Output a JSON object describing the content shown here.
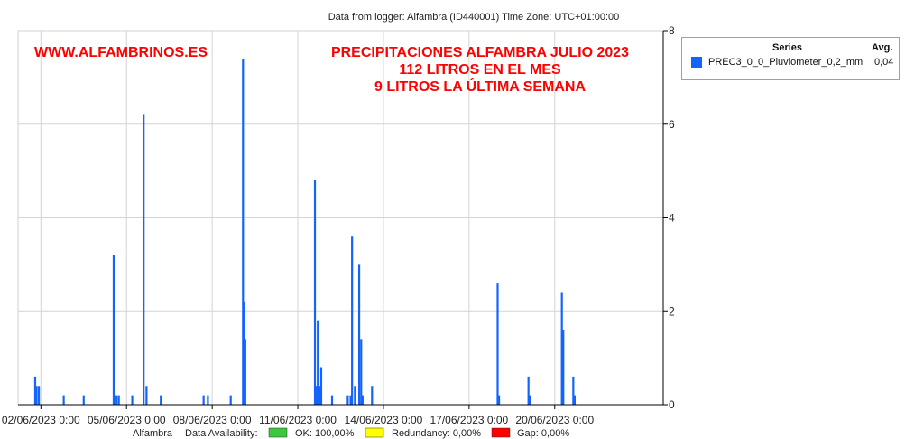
{
  "header": {
    "logger_info": "Data from logger: Alfambra (ID440001) Time Zone: UTC+01:00:00"
  },
  "overlay": {
    "site": "WWW.ALFAMBRINOS.ES",
    "title_line1": "PRECIPITACIONES ALFAMBRA JULIO 2023",
    "title_line2": "112 LITROS EN EL MES",
    "title_line3": "9 LITROS LA ÚLTIMA SEMANA",
    "color": "#ff0000"
  },
  "legend": {
    "col_series": "Series",
    "col_avg": "Avg.",
    "items": [
      {
        "name": "PREC3_0_0_Pluviometer_0,2_mm",
        "avg": "0,04",
        "color": "#1463ff"
      }
    ]
  },
  "footer": {
    "station": "Alfambra",
    "availability_label": "Data Availability:",
    "ok_label": "OK: 100,00%",
    "redundancy_label": "Redundancy: 0,00%",
    "gap_label": "Gap: 0,00%",
    "ok_color": "#3cc83c",
    "redundancy_color": "#ffff00",
    "gap_color": "#ff0000"
  },
  "chart_data": {
    "type": "line",
    "x_unit": "days",
    "x_start": "2023-06-02 00:00",
    "xlim_days": [
      -0.8,
      21.8
    ],
    "ylim": [
      0,
      8
    ],
    "y_ticks": [
      0,
      2,
      4,
      6,
      8
    ],
    "y_axis_side": "right",
    "grid": true,
    "x_tick_days": [
      0,
      3,
      6,
      9,
      12,
      15,
      18
    ],
    "x_tick_labels": [
      "02/06/2023 0:00",
      "05/06/2023 0:00",
      "08/06/2023 0:00",
      "11/06/2023 0:00",
      "14/06/2023 0:00",
      "17/06/2023 0:00",
      "20/06/2023 0:00"
    ],
    "color": "#1463ff",
    "series": [
      {
        "name": "PREC3_0_0_Pluviometer_0,2_mm",
        "points": [
          [
            -0.2,
            0.6
          ],
          [
            -0.15,
            0.4
          ],
          [
            -0.07,
            0.4
          ],
          [
            0.8,
            0.2
          ],
          [
            1.5,
            0.2
          ],
          [
            2.55,
            3.2
          ],
          [
            2.65,
            0.2
          ],
          [
            2.73,
            0.2
          ],
          [
            3.2,
            0.2
          ],
          [
            3.6,
            6.2
          ],
          [
            3.7,
            0.4
          ],
          [
            4.2,
            0.2
          ],
          [
            5.7,
            0.2
          ],
          [
            5.85,
            0.2
          ],
          [
            6.65,
            0.2
          ],
          [
            7.08,
            7.4
          ],
          [
            7.12,
            2.2
          ],
          [
            7.16,
            1.4
          ],
          [
            9.6,
            4.8
          ],
          [
            9.65,
            0.4
          ],
          [
            9.7,
            1.8
          ],
          [
            9.76,
            0.4
          ],
          [
            9.82,
            0.8
          ],
          [
            10.2,
            0.2
          ],
          [
            10.75,
            0.2
          ],
          [
            10.85,
            0.2
          ],
          [
            10.9,
            3.6
          ],
          [
            11.0,
            0.4
          ],
          [
            11.15,
            3.0
          ],
          [
            11.22,
            1.4
          ],
          [
            11.27,
            0.2
          ],
          [
            11.6,
            0.4
          ],
          [
            16.0,
            2.6
          ],
          [
            16.05,
            0.2
          ],
          [
            17.08,
            0.6
          ],
          [
            17.13,
            0.2
          ],
          [
            18.25,
            2.4
          ],
          [
            18.3,
            1.6
          ],
          [
            18.65,
            0.6
          ],
          [
            18.7,
            0.2
          ]
        ]
      }
    ]
  }
}
